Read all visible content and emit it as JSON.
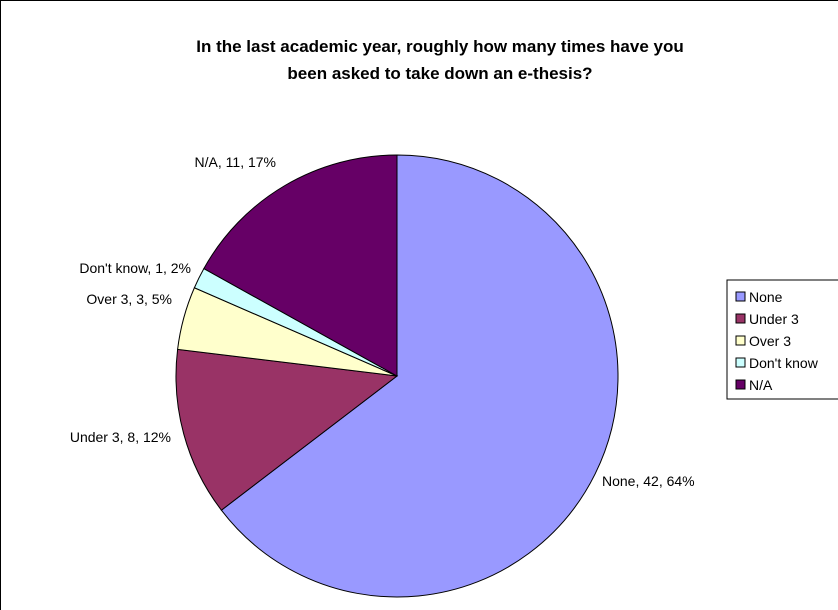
{
  "chart_data": {
    "type": "pie",
    "title_lines": [
      "In the last academic year, roughly how many times have you",
      "been asked to take down an e-thesis?"
    ],
    "categories": [
      "None",
      "Under 3",
      "Over 3",
      "Don't know",
      "N/A"
    ],
    "values": [
      42,
      8,
      3,
      1,
      11
    ],
    "percents": [
      64,
      12,
      5,
      2,
      17
    ],
    "data_labels": [
      "None, 42, 64%",
      "Under 3, 8, 12%",
      "Over 3, 3, 5%",
      "Don't know, 1, 2%",
      "N/A, 11, 17%"
    ],
    "colors": [
      "#9999ff",
      "#993366",
      "#ffffcc",
      "#ccffff",
      "#660066"
    ],
    "legend": {
      "placement": "right",
      "entries": [
        "None",
        "Under 3",
        "Over 3",
        "Don't know",
        "N/A"
      ]
    },
    "start_angle": "12 o'clock",
    "direction": "clockwise"
  }
}
